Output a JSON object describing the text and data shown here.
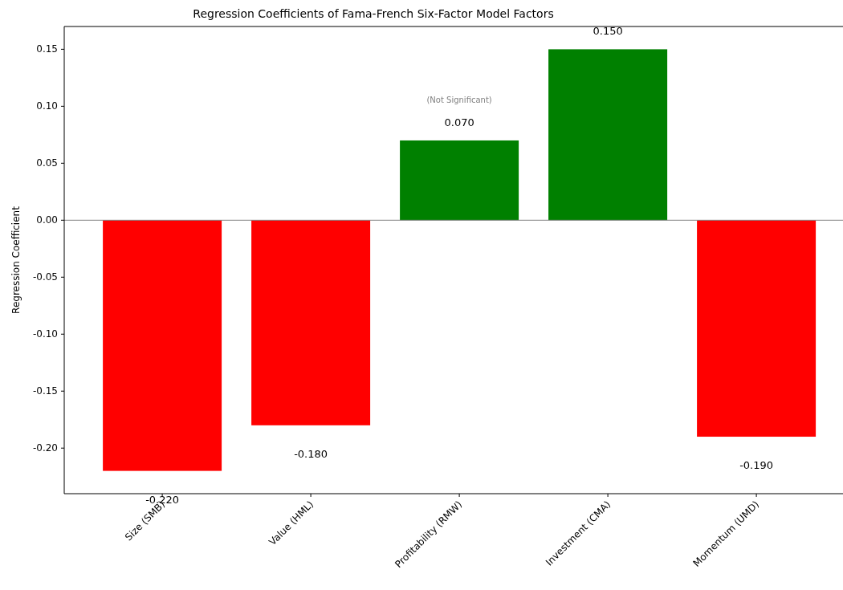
{
  "chart_data": {
    "type": "bar",
    "title": "Regression Coefficients of Fama-French Six-Factor Model Factors",
    "ylabel": "Regression Coefficient",
    "categories": [
      "Size (SMB)",
      "Value (HML)",
      "Profitability (RMW)",
      "Investment (CMA)",
      "Momentum (UMD)"
    ],
    "values": [
      -0.22,
      -0.18,
      0.07,
      0.15,
      -0.19
    ],
    "colors": [
      "#ff0000",
      "#ff0000",
      "#008000",
      "#008000",
      "#ff0000"
    ],
    "value_labels": [
      "-0.220",
      "-0.180",
      "0.070",
      "0.150",
      "-0.190"
    ],
    "ylim": [
      -0.24,
      0.17
    ],
    "yticks": [
      {
        "value": -0.2,
        "label": "-0.20"
      },
      {
        "value": -0.15,
        "label": "-0.15"
      },
      {
        "value": -0.1,
        "label": "-0.10"
      },
      {
        "value": -0.05,
        "label": "-0.05"
      },
      {
        "value": 0,
        "label": "0.00"
      },
      {
        "value": 0.05,
        "label": "0.05"
      },
      {
        "value": 0.1,
        "label": "0.10"
      },
      {
        "value": 0.15,
        "label": "0.15"
      }
    ],
    "ref_lines": [
      {
        "axis": "y",
        "value": 0,
        "color": "#808080"
      }
    ],
    "annotations": [
      "(Not Significant)"
    ]
  }
}
